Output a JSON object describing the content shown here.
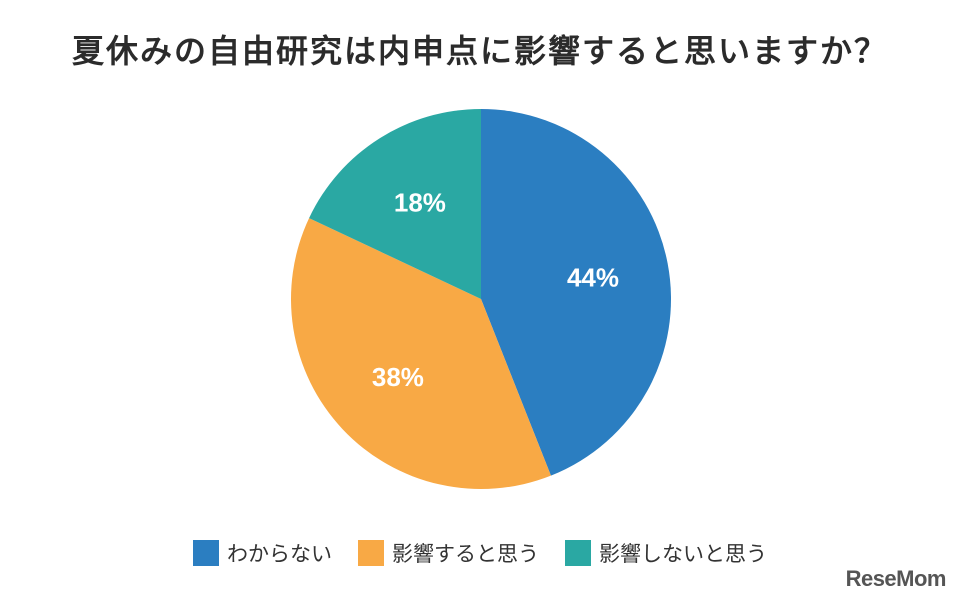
{
  "title": "夏休みの自由研究は内申点に影響すると思いますか？",
  "chart_data": {
    "type": "pie",
    "slices": [
      {
        "label": "わからない",
        "value": 44,
        "display": "44%",
        "color": "#2b7ec1"
      },
      {
        "label": "影響すると思う",
        "value": 38,
        "display": "38%",
        "color": "#f8a945"
      },
      {
        "label": "影響しないと思う",
        "value": 18,
        "display": "18%",
        "color": "#2aa8a3"
      }
    ],
    "start": "12 o'clock",
    "direction": "clockwise",
    "legend_position": "bottom"
  },
  "brand": "ReseMom"
}
